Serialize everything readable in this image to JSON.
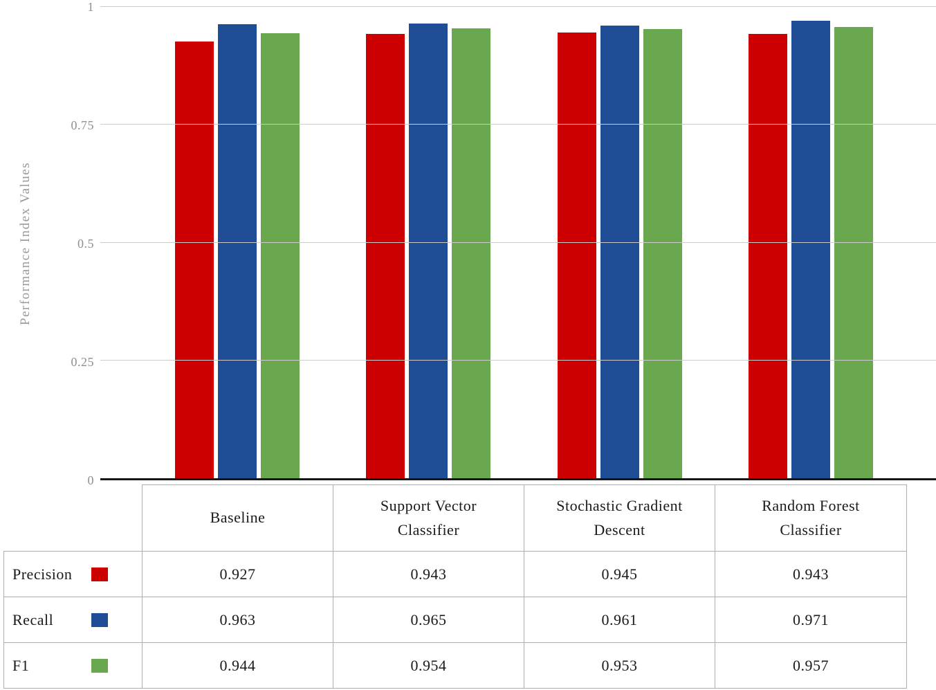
{
  "chart_data": {
    "type": "bar",
    "title": "",
    "xlabel": "",
    "ylabel": "Performance Index Values",
    "ylim": [
      0,
      1
    ],
    "grid": true,
    "legend_position": "table-left-column",
    "yticks": [
      {
        "value": 0,
        "label": "0"
      },
      {
        "value": 0.25,
        "label": "0.25"
      },
      {
        "value": 0.5,
        "label": "0.5"
      },
      {
        "value": 0.75,
        "label": "0.75"
      },
      {
        "value": 1,
        "label": "1"
      }
    ],
    "categories": [
      "Baseline",
      "Support Vector Classifier",
      "Stochastic Gradient Descent",
      "Random Forest Classifier"
    ],
    "series": [
      {
        "name": "Precision",
        "color": "#cc0000",
        "values": [
          0.927,
          0.943,
          0.945,
          0.943
        ]
      },
      {
        "name": "Recall",
        "color": "#1f4e96",
        "values": [
          0.963,
          0.965,
          0.961,
          0.971
        ]
      },
      {
        "name": "F1",
        "color": "#6aa84f",
        "values": [
          0.944,
          0.954,
          0.953,
          0.957
        ]
      }
    ]
  }
}
